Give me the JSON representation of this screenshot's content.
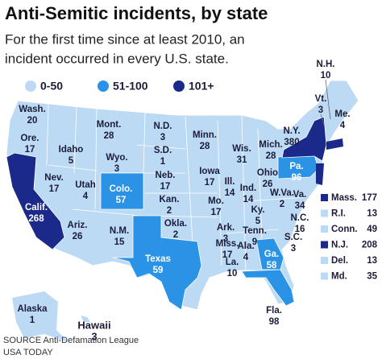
{
  "header": {
    "title": "Anti-Semitic incidents, by state",
    "subtitle_lines": [
      "For the first time since at least 2010, an",
      "incident occurred in every U.S. state."
    ]
  },
  "legend": [
    {
      "label": "0-50",
      "color": "#bcdaf3"
    },
    {
      "label": "51-100",
      "color": "#2a93e6"
    },
    {
      "label": "101+",
      "color": "#1b2a8a"
    }
  ],
  "states": [
    {
      "name": "Wash.",
      "value": 20,
      "color": "#bcdaf3"
    },
    {
      "name": "Ore.",
      "value": 17,
      "color": "#bcdaf3"
    },
    {
      "name": "Calif.",
      "value": 268,
      "color": "#1b2a8a"
    },
    {
      "name": "Nev.",
      "value": 17,
      "color": "#bcdaf3"
    },
    {
      "name": "Idaho",
      "value": 5,
      "color": "#bcdaf3"
    },
    {
      "name": "Mont.",
      "value": 28,
      "color": "#bcdaf3"
    },
    {
      "name": "Wyo.",
      "value": 3,
      "color": "#bcdaf3"
    },
    {
      "name": "Utah",
      "value": 4,
      "color": "#bcdaf3"
    },
    {
      "name": "Ariz.",
      "value": 26,
      "color": "#bcdaf3"
    },
    {
      "name": "Colo.",
      "value": 57,
      "color": "#2a93e6"
    },
    {
      "name": "N.M.",
      "value": 15,
      "color": "#bcdaf3"
    },
    {
      "name": "N.D.",
      "value": 3,
      "color": "#bcdaf3"
    },
    {
      "name": "S.D.",
      "value": 1,
      "color": "#bcdaf3"
    },
    {
      "name": "Neb.",
      "value": 17,
      "color": "#bcdaf3"
    },
    {
      "name": "Kan.",
      "value": 2,
      "color": "#bcdaf3"
    },
    {
      "name": "Okla.",
      "value": 2,
      "color": "#bcdaf3"
    },
    {
      "name": "Texas",
      "value": 59,
      "color": "#2a93e6"
    },
    {
      "name": "Minn.",
      "value": 28,
      "color": "#bcdaf3"
    },
    {
      "name": "Iowa",
      "value": 17,
      "color": "#bcdaf3"
    },
    {
      "name": "Mo.",
      "value": 17,
      "color": "#bcdaf3"
    },
    {
      "name": "Ark.",
      "value": 3,
      "color": "#bcdaf3"
    },
    {
      "name": "La.",
      "value": 10,
      "color": "#bcdaf3"
    },
    {
      "name": "Wis.",
      "value": 31,
      "color": "#bcdaf3"
    },
    {
      "name": "Ill.",
      "value": 14,
      "color": "#bcdaf3"
    },
    {
      "name": "Mich.",
      "value": 28,
      "color": "#bcdaf3"
    },
    {
      "name": "Ind.",
      "value": 14,
      "color": "#bcdaf3"
    },
    {
      "name": "Ohio",
      "value": 26,
      "color": "#bcdaf3"
    },
    {
      "name": "Ky.",
      "value": 5,
      "color": "#bcdaf3"
    },
    {
      "name": "Tenn.",
      "value": 9,
      "color": "#bcdaf3"
    },
    {
      "name": "Miss.",
      "value": 17,
      "color": "#bcdaf3"
    },
    {
      "name": "Ala.",
      "value": 4,
      "color": "#bcdaf3"
    },
    {
      "name": "Ga.",
      "value": 58,
      "color": "#2a93e6"
    },
    {
      "name": "Fla.",
      "value": 98,
      "color": "#2a93e6"
    },
    {
      "name": "S.C.",
      "value": 3,
      "color": "#bcdaf3"
    },
    {
      "name": "N.C.",
      "value": 16,
      "color": "#bcdaf3"
    },
    {
      "name": "Va.",
      "value": 34,
      "color": "#bcdaf3"
    },
    {
      "name": "W.Va.",
      "value": 2,
      "color": "#bcdaf3"
    },
    {
      "name": "Pa.",
      "value": 96,
      "color": "#2a93e6"
    },
    {
      "name": "N.Y.",
      "value": 380,
      "color": "#1b2a8a"
    },
    {
      "name": "Vt.",
      "value": 3,
      "color": "#bcdaf3"
    },
    {
      "name": "N.H.",
      "value": 10,
      "color": "#bcdaf3"
    },
    {
      "name": "Me.",
      "value": 4,
      "color": "#bcdaf3"
    },
    {
      "name": "Alaska",
      "value": 1,
      "color": "#bcdaf3"
    },
    {
      "name": "Hawaii",
      "value": 3,
      "color": "#bcdaf3"
    }
  ],
  "inset_states": [
    {
      "name": "Mass.",
      "value": 177,
      "color": "#1b2a8a"
    },
    {
      "name": "R.I.",
      "value": 13,
      "color": "#bcdaf3"
    },
    {
      "name": "Conn.",
      "value": 49,
      "color": "#bcdaf3"
    },
    {
      "name": "N.J.",
      "value": 208,
      "color": "#1b2a8a"
    },
    {
      "name": "Del.",
      "value": 13,
      "color": "#bcdaf3"
    },
    {
      "name": "Md.",
      "value": 35,
      "color": "#bcdaf3"
    }
  ],
  "footer": {
    "source": "SOURCE Anti-Defamation League",
    "org": "USA TODAY"
  }
}
